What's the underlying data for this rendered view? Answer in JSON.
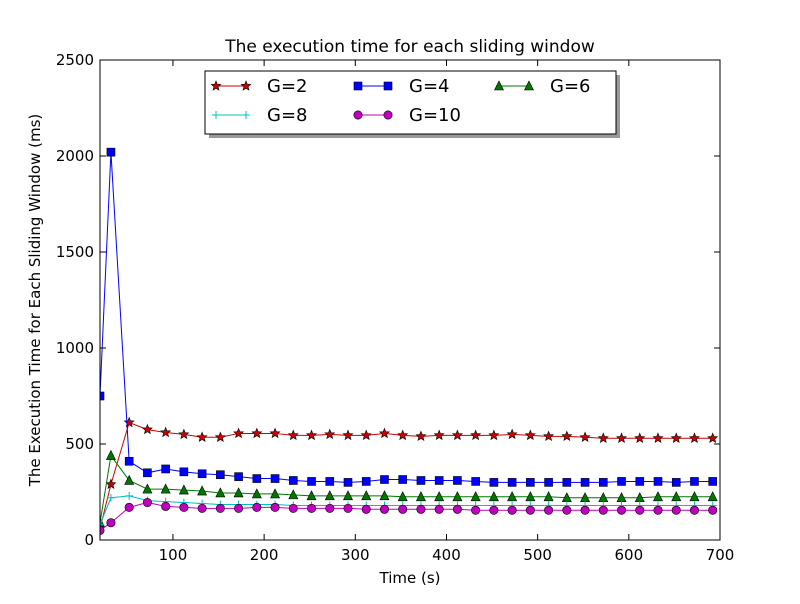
{
  "chart_data": {
    "type": "line",
    "title": "The execution time for each sliding window",
    "xlabel": "Time (s)",
    "ylabel": "The Execution Time for Each Sliding Window (ms)",
    "xlim": [
      20,
      700
    ],
    "ylim": [
      0,
      2500
    ],
    "xticks": [
      100,
      200,
      300,
      400,
      500,
      600,
      700
    ],
    "yticks": [
      0,
      500,
      1000,
      1500,
      2000,
      2500
    ],
    "grid": false,
    "legend": {
      "placement": "top-center",
      "columns": 3
    },
    "x": [
      20,
      32,
      52,
      72,
      92,
      112,
      132,
      152,
      172,
      192,
      212,
      232,
      252,
      272,
      292,
      312,
      332,
      352,
      372,
      392,
      412,
      432,
      452,
      472,
      492,
      512,
      532,
      552,
      572,
      592,
      612,
      632,
      652,
      672,
      692
    ],
    "series": [
      {
        "name": "G=2",
        "color": "#cc0000",
        "marker": "star",
        "values": [
          60,
          290,
          612,
          575,
          560,
          550,
          535,
          535,
          555,
          555,
          555,
          545,
          545,
          550,
          545,
          545,
          555,
          545,
          540,
          545,
          545,
          545,
          545,
          550,
          545,
          540,
          540,
          535,
          530,
          530,
          530,
          530,
          530,
          530,
          530
        ]
      },
      {
        "name": "G=4",
        "color": "#0000ff",
        "marker": "square",
        "values": [
          750,
          2020,
          410,
          350,
          370,
          355,
          345,
          340,
          330,
          320,
          320,
          310,
          305,
          305,
          300,
          305,
          315,
          315,
          310,
          310,
          310,
          305,
          300,
          300,
          300,
          300,
          300,
          300,
          300,
          305,
          305,
          305,
          300,
          305,
          305
        ]
      },
      {
        "name": "G=6",
        "color": "#007700",
        "marker": "triangle",
        "values": [
          90,
          440,
          310,
          265,
          265,
          260,
          255,
          245,
          245,
          240,
          240,
          235,
          230,
          230,
          230,
          230,
          230,
          225,
          225,
          225,
          225,
          225,
          225,
          225,
          225,
          225,
          220,
          220,
          220,
          220,
          220,
          225,
          225,
          225,
          225
        ]
      },
      {
        "name": "G=8",
        "color": "#00bfbf",
        "marker": "plus",
        "values": [
          80,
          220,
          230,
          205,
          200,
          195,
          190,
          185,
          185,
          185,
          185,
          180,
          180,
          180,
          180,
          180,
          180,
          180,
          180,
          180,
          180,
          180,
          180,
          180,
          180,
          180,
          180,
          180,
          180,
          180,
          180,
          180,
          180,
          180,
          180
        ]
      },
      {
        "name": "G=10",
        "color": "#bf00bf",
        "marker": "circle",
        "values": [
          50,
          90,
          170,
          195,
          175,
          170,
          165,
          165,
          165,
          170,
          170,
          165,
          165,
          165,
          165,
          160,
          160,
          160,
          160,
          160,
          160,
          155,
          155,
          155,
          155,
          155,
          155,
          155,
          155,
          155,
          155,
          155,
          155,
          155,
          155
        ]
      }
    ]
  }
}
